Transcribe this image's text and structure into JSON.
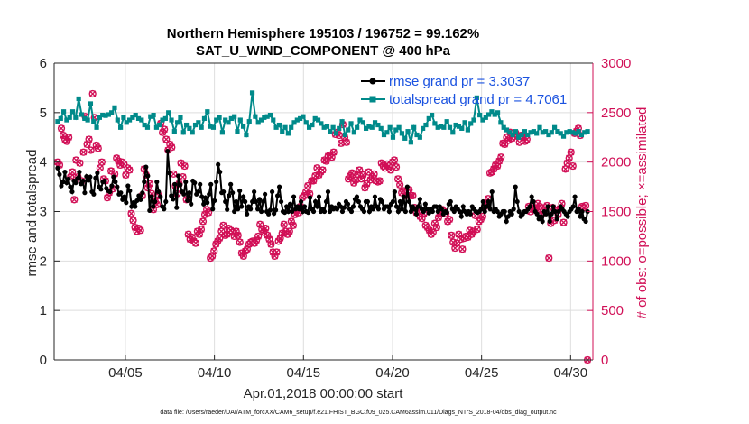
{
  "chart_data": {
    "type": "line",
    "title": "Northern Hemisphere 195103 / 196752 = 99.162%",
    "subtitle": "SAT_U_WIND_COMPONENT @ 400 hPa",
    "xlabel": "Apr.01,2018 00:00:00 start",
    "ylabel": "rmse and totalspread",
    "y2label": "# of obs: o=possible; ×=assimilated",
    "footer": "data file: /Users/raeder/DAI/ATM_forcXX/CAM6_setup/f.e21.FHIST_BGC.f09_025.CAM6assim.011/Diags_NTrS_2018-04/obs_diag_output.nc",
    "xlim": [
      1.0,
      31.25
    ],
    "ylim": [
      0,
      6
    ],
    "y2lim": [
      0,
      3000
    ],
    "xticks": [
      5,
      10,
      15,
      20,
      25,
      30
    ],
    "xtick_labels": [
      "04/05",
      "04/10",
      "04/15",
      "04/20",
      "04/25",
      "04/30"
    ],
    "yticks": [
      0,
      1,
      2,
      3,
      4,
      5,
      6
    ],
    "ytick_labels": [
      "0",
      "1",
      "2",
      "3",
      "4",
      "5",
      "6"
    ],
    "y2ticks": [
      0,
      500,
      1000,
      1500,
      2000,
      2500,
      3000
    ],
    "y2tick_labels": [
      "0",
      "500",
      "1000",
      "1500",
      "2000",
      "2500",
      "3000"
    ],
    "colors": {
      "rmse": "#000000",
      "spread": "#008a8a",
      "obs": "#d10f56",
      "legend_text": "#1a52e0"
    },
    "legend_position": "top-right",
    "series": [
      {
        "name": "rmse grand pr = 3.3037",
        "color": "#000000",
        "values": [
          3.88,
          3.75,
          3.52,
          3.6,
          3.8,
          3.58,
          3.66,
          3.5,
          3.4,
          3.62,
          3.58,
          3.67,
          3.8,
          3.56,
          3.62,
          3.38,
          3.71,
          3.63,
          3.7,
          3.4,
          3.35,
          3.68,
          3.78,
          3.5,
          3.45,
          3.6,
          3.62,
          3.47,
          3.42,
          3.4,
          3.52,
          3.7,
          3.6,
          3.5,
          3.35,
          3.38,
          3.24,
          3.3,
          3.18,
          3.52,
          3.42,
          3.1,
          3.18,
          3.1,
          3.22,
          3.32,
          3.24,
          3.38,
          3.6,
          3.9,
          3.72,
          3.02,
          3.3,
          3.1,
          3.2,
          3.6,
          3.4,
          3.3,
          3.1,
          3.05,
          3.2,
          4.22,
          3.78,
          3.32,
          3.25,
          3.55,
          3.08,
          3.72,
          3.54,
          3.4,
          3.35,
          3.6,
          3.22,
          3.38,
          3.15,
          3.62,
          3.58,
          3.35,
          3.4,
          3.55,
          3.3,
          3.15,
          3.28,
          3.18,
          3.35,
          3.55,
          3.05,
          3.22,
          3.6,
          3.95,
          3.8,
          3.38,
          3.4,
          3.2,
          3.04,
          3.32,
          3.55,
          3.38,
          3.0,
          3.2,
          3.05,
          3.42,
          3.1,
          3.3,
          3.2,
          2.95,
          3.1,
          3.05,
          3.2,
          3.4,
          3.2,
          3.05,
          3.25,
          3.0,
          3.2,
          3.35,
          3.0,
          2.95,
          3.03,
          3.4,
          2.96,
          3.03,
          3.32,
          3.5,
          3.2,
          3.0,
          2.98,
          3.1,
          3.0,
          3.15,
          3.0,
          3.3,
          3.05,
          3.1,
          3.05,
          3.2,
          3.0,
          3.1,
          3.0,
          2.98,
          3.28,
          3.05,
          3.0,
          3.2,
          3.1,
          3.3,
          3.0,
          3.05,
          3.0,
          3.2,
          3.4,
          3.0,
          3.1,
          3.05,
          3.08,
          3.05,
          3.15,
          3.1,
          3.0,
          3.08,
          3.2,
          3.15,
          3.05,
          3.0,
          3.1,
          3.25,
          3.3,
          3.2,
          3.1,
          3.05,
          3.0,
          3.2,
          3.2,
          3.0,
          3.1,
          3.05,
          3.3,
          3.1,
          3.05,
          3.25,
          3.2,
          3.05,
          3.1,
          3.1,
          3.0,
          3.15,
          3.2,
          3.4,
          3.1,
          3.0,
          3.2,
          3.05,
          3.3,
          3.0,
          3.5,
          3.2,
          3.0,
          3.1,
          3.05,
          2.95,
          3.1,
          3.25,
          3.05,
          3.0,
          3.15,
          3.05,
          2.97,
          3.05,
          3.0,
          3.1,
          3.1,
          3.0,
          3.1,
          3.05,
          2.95,
          3.0,
          2.98,
          3.15,
          3.2,
          3.05,
          3.0,
          3.1,
          3.05,
          3.0,
          2.9,
          3.1,
          3.0,
          2.95,
          3.0,
          2.95,
          3.1,
          3.05,
          3.0,
          2.98,
          3.0,
          3.05,
          3.2,
          3.0,
          3.1,
          3.2,
          3.05,
          3.4,
          3.0,
          3.05,
          3.0,
          2.9,
          2.95,
          3.0,
          3.0,
          2.8,
          2.9,
          3.0,
          2.95,
          3.05,
          3.5,
          3.2,
          3.0,
          2.9,
          2.95,
          3.0,
          3.0,
          3.05,
          3.1,
          3.3,
          3.2,
          3.0,
          2.95,
          2.85,
          2.9,
          2.8,
          3.0,
          2.95,
          3.1,
          2.8,
          2.95,
          3.1,
          3.0,
          2.85,
          3.0,
          3.1,
          3.05,
          3.0,
          2.95,
          2.9,
          3.0,
          3.05,
          3.1,
          3.3,
          3.0,
          3.05,
          2.9,
          3.0,
          2.85,
          2.8,
          3.0
        ]
      },
      {
        "name": "totalspread grand pr = 4.7061",
        "color": "#008a8a",
        "values": [
          4.82,
          4.88,
          5.02,
          4.85,
          4.9,
          5.02,
          4.9,
          5.28,
          4.96,
          4.88,
          4.85,
          5.18,
          4.82,
          4.7,
          4.9,
          4.95,
          4.94,
          4.96,
          5.0,
          5.1,
          4.85,
          4.7,
          4.9,
          4.8,
          4.85,
          4.9,
          4.95,
          4.88,
          4.85,
          4.75,
          4.7,
          4.92,
          4.95,
          4.7,
          4.75,
          4.85,
          4.88,
          5.0,
          4.85,
          4.62,
          4.8,
          4.9,
          4.6,
          4.75,
          4.68,
          4.6,
          4.75,
          4.8,
          4.7,
          4.88,
          5.02,
          4.72,
          4.7,
          4.85,
          4.9,
          4.6,
          4.85,
          4.8,
          4.88,
          4.92,
          4.62,
          4.85,
          4.72,
          4.55,
          4.82,
          5.4,
          4.92,
          4.8,
          4.85,
          4.9,
          4.92,
          4.95,
          4.85,
          4.7,
          4.75,
          4.62,
          4.7,
          4.58,
          4.7,
          4.8,
          4.85,
          4.88,
          4.92,
          4.8,
          4.7,
          4.75,
          4.88,
          4.85,
          4.78,
          4.7,
          4.72,
          4.62,
          4.7,
          4.58,
          4.68,
          4.82,
          4.55,
          4.65,
          4.78,
          4.6,
          4.7,
          4.85,
          4.8,
          4.68,
          4.72,
          4.7,
          4.8,
          4.75,
          4.68,
          4.55,
          4.6,
          4.7,
          4.5,
          4.65,
          4.7,
          4.58,
          4.48,
          4.62,
          4.4,
          4.7,
          4.55,
          4.5,
          4.68,
          4.75,
          4.88,
          4.95,
          4.78,
          4.7,
          4.72,
          4.7,
          4.82,
          4.7,
          4.6,
          4.75,
          4.72,
          4.68,
          4.8,
          4.65,
          4.78,
          4.85,
          5.3,
          4.95,
          4.85,
          4.9,
          4.96,
          5.02,
          4.96,
          5.0,
          4.8,
          4.7,
          4.65,
          4.6,
          4.55,
          4.62,
          4.5,
          4.55,
          4.62,
          4.55,
          4.6,
          4.62,
          4.58,
          4.7,
          4.6,
          4.62,
          4.55,
          4.6,
          4.7,
          4.62,
          4.58,
          4.52,
          4.6,
          4.62,
          4.6,
          4.58,
          4.62,
          4.55,
          4.6,
          4.62
        ]
      }
    ],
    "obs_possible": {
      "name": "o=possible",
      "color": "#d10f56",
      "values": [
        2000,
        1970,
        2340,
        2270,
        2230,
        2210,
        2250,
        1850,
        1900,
        1620,
        2020,
        1850,
        1990,
        1810,
        2100,
        2460,
        2180,
        2230,
        2120,
        2690,
        2450,
        2170,
        2140,
        1940,
        2000,
        1830,
        1810,
        1640,
        1690,
        1910,
        1730,
        1880,
        2040,
        2010,
        1970,
        2000,
        1980,
        1870,
        1940,
        1920,
        1480,
        1410,
        1340,
        1300,
        1330,
        1310,
        1660,
        1930,
        1870,
        1740,
        1780,
        1680,
        1520,
        1600,
        1570,
        1660,
        2390,
        2300,
        2330,
        2230,
        2120,
        2180,
        2150,
        1880,
        1760,
        1680,
        1780,
        1990,
        1850,
        1960,
        1620,
        1270,
        1220,
        1240,
        1200,
        1180,
        1300,
        1270,
        1320,
        1400,
        1470,
        1520,
        1490,
        1030,
        1050,
        1100,
        1170,
        1200,
        1230,
        1300,
        1360,
        1260,
        1270,
        1330,
        1310,
        1290,
        1250,
        1300,
        1260,
        1190,
        1080,
        1050,
        1100,
        1120,
        1170,
        1190,
        1200,
        1180,
        1210,
        1250,
        1370,
        1320,
        1290,
        1330,
        1260,
        1220,
        1170,
        1090,
        1050,
        1090,
        1200,
        1230,
        1280,
        1370,
        1300,
        1270,
        1300,
        1400,
        1360,
        1470,
        1510,
        1490,
        1550,
        1640,
        1660,
        1700,
        1760,
        1680,
        1810,
        1810,
        1860,
        1940,
        1870,
        1900,
        1920,
        2020,
        2010,
        2060,
        2070,
        2050,
        2100,
        2280,
        2300,
        2270,
        2190,
        2380,
        2250,
        2200,
        1830,
        1860,
        1890,
        1790,
        1820,
        1880,
        1920,
        1830,
        1870,
        1740,
        1780,
        1900,
        1820,
        1850,
        1880,
        1810,
        1800,
        1810,
        1990,
        1960,
        1940,
        1980,
        1960,
        1920,
        2000,
        2020,
        1950,
        1830,
        1770,
        1690,
        1710,
        1660,
        1700,
        1720,
        1660,
        1660,
        1540,
        1490,
        1500,
        1450,
        1430,
        1480,
        1360,
        1340,
        1310,
        1270,
        1290,
        1380,
        1340,
        1440,
        1480,
        1520,
        1500,
        1480,
        1400,
        1420,
        1260,
        1190,
        1130,
        1180,
        1270,
        1220,
        1120,
        1230,
        1250,
        1240,
        1310,
        1270,
        1300,
        1460,
        1320,
        1400,
        1420,
        1450,
        1550,
        1590,
        1630,
        1890,
        1900,
        1930,
        1970,
        1960,
        2010,
        2050,
        2190,
        2180,
        2250,
        2220,
        2300,
        2240,
        2260,
        2290,
        2260,
        2200,
        2270,
        2250,
        2210,
        2230,
        1550,
        1500,
        1560,
        1520,
        1530,
        1580,
        1550,
        1470,
        1510,
        1540,
        1560,
        1030,
        1380,
        1540,
        1410,
        1510,
        1470,
        1530,
        1580,
        1390,
        1930,
        1990,
        2040,
        2100,
        1960,
        2290,
        2310,
        2340,
        2270,
        1550,
        1540,
        1560,
        0
      ]
    }
  }
}
